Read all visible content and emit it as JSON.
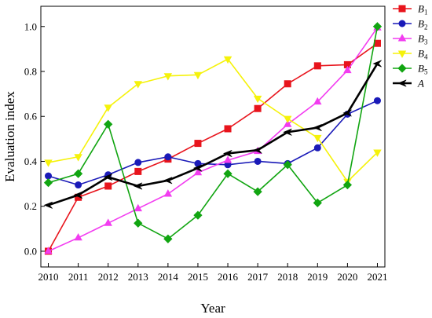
{
  "chart_data": {
    "type": "line",
    "xlabel": "Year",
    "ylabel": "Evaluation index",
    "x": [
      2010,
      2011,
      2012,
      2013,
      2014,
      2015,
      2016,
      2017,
      2018,
      2019,
      2020,
      2021
    ],
    "x_tick_labels": [
      "2010",
      "2011",
      "2012",
      "2013",
      "2014",
      "2015",
      "2016",
      "2017",
      "2018",
      "2019",
      "2020",
      "2021"
    ],
    "y_ticks": [
      0.0,
      0.2,
      0.4,
      0.6,
      0.8,
      1.0
    ],
    "y_tick_labels": [
      "0.0",
      "0.2",
      "0.4",
      "0.6",
      "0.8",
      "1.0"
    ],
    "ylim": [
      -0.07,
      1.09
    ],
    "xlim": [
      2009.75,
      2021.25
    ],
    "grid": false,
    "legend_position": "top-right",
    "series": [
      {
        "name": "B1",
        "name_base": "B",
        "name_sub": "1",
        "color": "#e8141c",
        "marker": "square",
        "values": [
          0.0,
          0.24,
          0.29,
          0.355,
          0.41,
          0.48,
          0.545,
          0.635,
          0.745,
          0.825,
          0.83,
          0.925
        ]
      },
      {
        "name": "B2",
        "name_base": "B",
        "name_sub": "2",
        "color": "#1a1ab8",
        "marker": "circle",
        "values": [
          0.335,
          0.295,
          0.34,
          0.395,
          0.42,
          0.39,
          0.385,
          0.4,
          0.39,
          0.46,
          0.61,
          0.67
        ]
      },
      {
        "name": "B3",
        "name_base": "B",
        "name_sub": "3",
        "color": "#f23cf0",
        "marker": "triangle",
        "values": [
          0.0,
          0.06,
          0.125,
          0.19,
          0.255,
          0.35,
          0.405,
          0.445,
          0.565,
          0.665,
          0.805,
          0.995
        ]
      },
      {
        "name": "B4",
        "name_base": "B",
        "name_sub": "4",
        "color": "#f5f20a",
        "marker": "triangle-down",
        "values": [
          0.395,
          0.42,
          0.64,
          0.745,
          0.78,
          0.785,
          0.855,
          0.68,
          0.59,
          0.505,
          0.31,
          0.44
        ]
      },
      {
        "name": "B5",
        "name_base": "B",
        "name_sub": "5",
        "color": "#11a511",
        "marker": "diamond",
        "values": [
          0.305,
          0.345,
          0.565,
          0.125,
          0.055,
          0.16,
          0.345,
          0.265,
          0.385,
          0.215,
          0.295,
          1.0
        ]
      },
      {
        "name": "A",
        "name_base": "A",
        "name_sub": "",
        "color": "#000000",
        "marker": "arrow-left",
        "values": [
          0.205,
          0.25,
          0.33,
          0.29,
          0.315,
          0.37,
          0.435,
          0.45,
          0.53,
          0.55,
          0.615,
          0.835
        ]
      }
    ]
  }
}
